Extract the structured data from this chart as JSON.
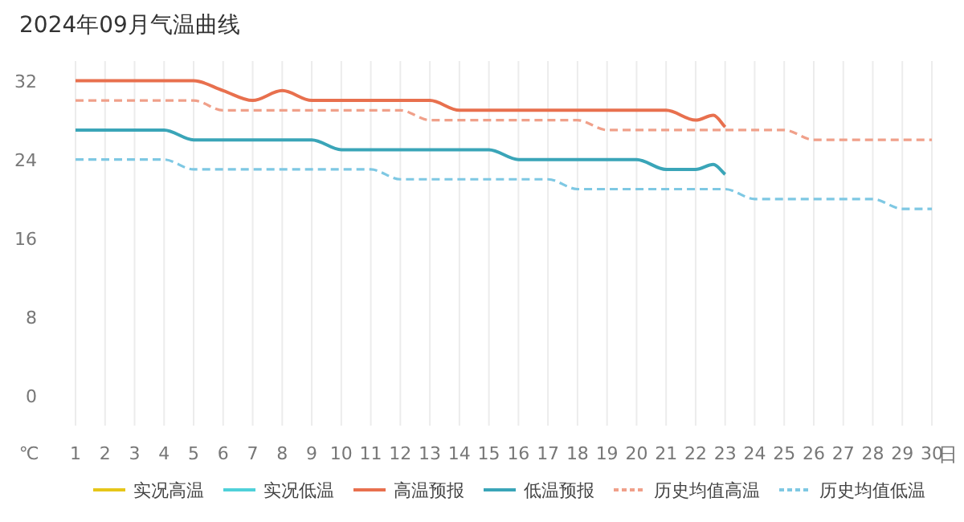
{
  "chart_data": {
    "type": "line",
    "title": "2024年09月气温曲线",
    "xlabel": "日",
    "ylabel": "℃",
    "xlim": [
      1,
      30
    ],
    "xticks": [
      1,
      2,
      3,
      4,
      5,
      6,
      7,
      8,
      9,
      10,
      11,
      12,
      13,
      14,
      15,
      16,
      17,
      18,
      19,
      20,
      21,
      22,
      23,
      24,
      25,
      26,
      27,
      28,
      29,
      30
    ],
    "ylim": [
      -3,
      34
    ],
    "yticks": [
      0,
      8,
      16,
      24,
      32
    ],
    "grid": "x",
    "legend": "bottom",
    "marker": "none",
    "series": [
      {
        "name": "实况高温",
        "color": "#e6c619",
        "line_style": "solid"
      },
      {
        "name": "实况低温",
        "color": "#4fd1d9",
        "line_style": "solid"
      },
      {
        "name": "高温预报",
        "color": "#e8704e",
        "line_style": "solid",
        "x": [
          1,
          2,
          3,
          4,
          5,
          6,
          7,
          8,
          9,
          10,
          11,
          12,
          13,
          14,
          15,
          16,
          17,
          18,
          19,
          20,
          21,
          22,
          22.6,
          23
        ],
        "values": [
          32,
          32,
          32,
          32,
          32,
          31,
          30,
          31,
          30,
          30,
          30,
          30,
          30,
          29,
          29,
          29,
          29,
          29,
          29,
          29,
          29,
          28,
          28.5,
          27.3
        ]
      },
      {
        "name": "低温预报",
        "color": "#3aa5b8",
        "line_style": "solid",
        "x": [
          1,
          2,
          3,
          4,
          5,
          6,
          7,
          8,
          9,
          10,
          11,
          12,
          13,
          14,
          15,
          16,
          17,
          18,
          19,
          20,
          21,
          22,
          22.6,
          23
        ],
        "values": [
          27,
          27,
          27,
          27,
          26,
          26,
          26,
          26,
          26,
          25,
          25,
          25,
          25,
          25,
          25,
          24,
          24,
          24,
          24,
          24,
          23,
          23,
          23.5,
          22.5
        ]
      },
      {
        "name": "历史均值高温",
        "color": "#f0a08a",
        "line_style": "dashed",
        "x": [
          1,
          2,
          3,
          4,
          5,
          6,
          7,
          8,
          9,
          10,
          11,
          12,
          13,
          14,
          15,
          16,
          17,
          18,
          19,
          20,
          21,
          22,
          23,
          24,
          25,
          26,
          27,
          28,
          29,
          30
        ],
        "values": [
          30,
          30,
          30,
          30,
          30,
          29,
          29,
          29,
          29,
          29,
          29,
          29,
          28,
          28,
          28,
          28,
          28,
          28,
          27,
          27,
          27,
          27,
          27,
          27,
          27,
          26,
          26,
          26,
          26,
          26
        ]
      },
      {
        "name": "历史均值低温",
        "color": "#7ec8e3",
        "line_style": "dashed",
        "x": [
          1,
          2,
          3,
          4,
          5,
          6,
          7,
          8,
          9,
          10,
          11,
          12,
          13,
          14,
          15,
          16,
          17,
          18,
          19,
          20,
          21,
          22,
          23,
          24,
          25,
          26,
          27,
          28,
          29,
          30
        ],
        "values": [
          24,
          24,
          24,
          24,
          23,
          23,
          23,
          23,
          23,
          23,
          23,
          22,
          22,
          22,
          22,
          22,
          22,
          21,
          21,
          21,
          21,
          21,
          21,
          20,
          20,
          20,
          20,
          20,
          19,
          19
        ]
      }
    ]
  }
}
